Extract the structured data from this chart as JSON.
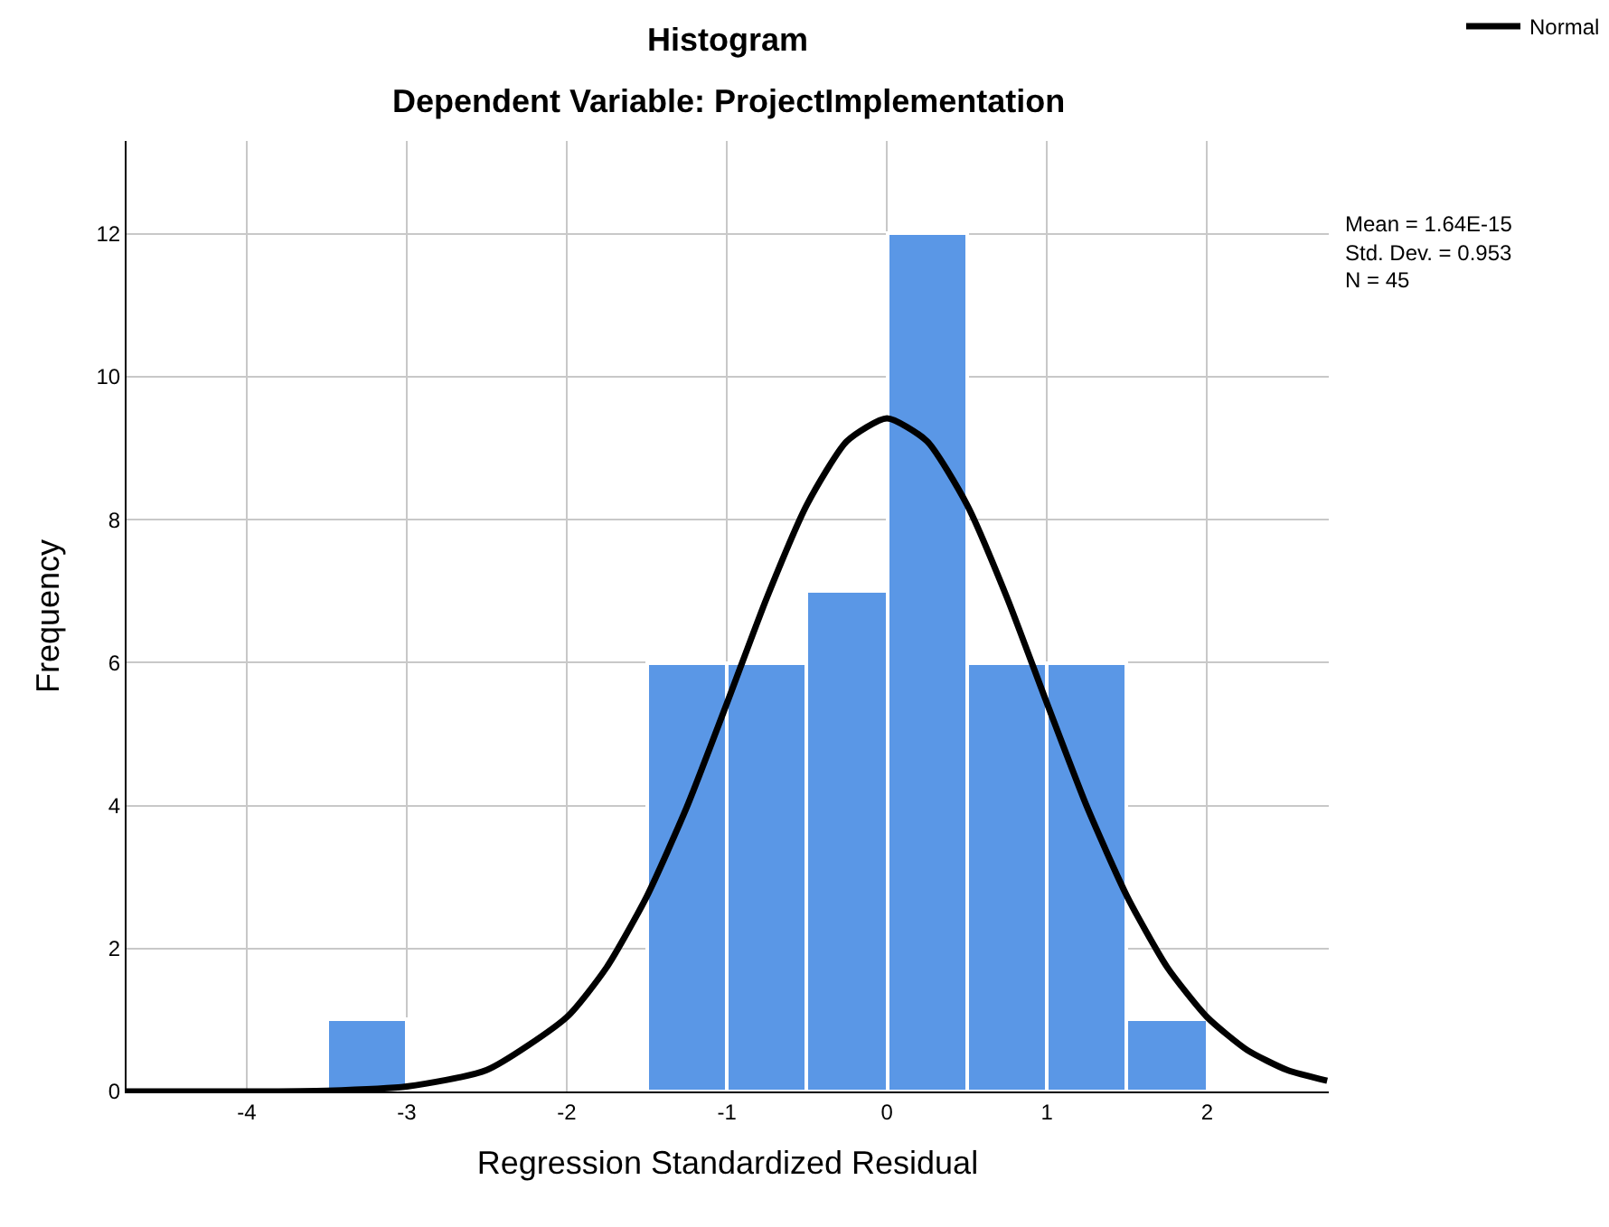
{
  "chart_data": {
    "type": "histogram",
    "title": "Histogram",
    "subtitle": "Dependent Variable: ProjectImplementation",
    "xlabel": "Regression Standardized Residual",
    "ylabel": "Frequency",
    "bins": [
      -3.5,
      -3.0,
      -2.5,
      -2.0,
      -1.5,
      -1.0,
      -0.5,
      0.0,
      0.5,
      1.0,
      1.5,
      2.0
    ],
    "values": [
      1,
      0,
      0,
      0,
      6,
      6,
      7,
      12,
      6,
      6,
      1
    ],
    "color": "#5a97e6",
    "series": [
      {
        "name": "Normal",
        "type": "line",
        "color": "#000000",
        "x": [
          -4.75,
          -4.0,
          -3.5,
          -3.0,
          -2.5,
          -2.0,
          -1.75,
          -1.5,
          -1.25,
          -1.0,
          -0.75,
          -0.5,
          -0.25,
          0.0,
          0.25,
          0.5,
          0.75,
          1.0,
          1.25,
          1.5,
          1.75,
          2.0,
          2.25,
          2.5,
          2.75
        ],
        "values": [
          0.0,
          0.0,
          0.01,
          0.07,
          0.3,
          1.04,
          1.74,
          2.73,
          3.98,
          5.43,
          6.91,
          8.21,
          9.1,
          9.42,
          9.1,
          8.21,
          6.91,
          5.43,
          3.98,
          2.73,
          1.74,
          1.04,
          0.58,
          0.3,
          0.15
        ]
      }
    ],
    "xlim": [
      -4.75,
      2.76
    ],
    "ylim": [
      0,
      13.3
    ],
    "xticks": [
      -4,
      -3,
      -2,
      -1,
      0,
      1,
      2
    ],
    "yticks": [
      0,
      2,
      4,
      6,
      8,
      10,
      12
    ],
    "grid": true,
    "legend": "top right",
    "marker": "none",
    "line_style": "solid",
    "annotations": [
      "Mean = 1.64E-15",
      "Std. Dev. = 0.953",
      "N = 45"
    ]
  }
}
